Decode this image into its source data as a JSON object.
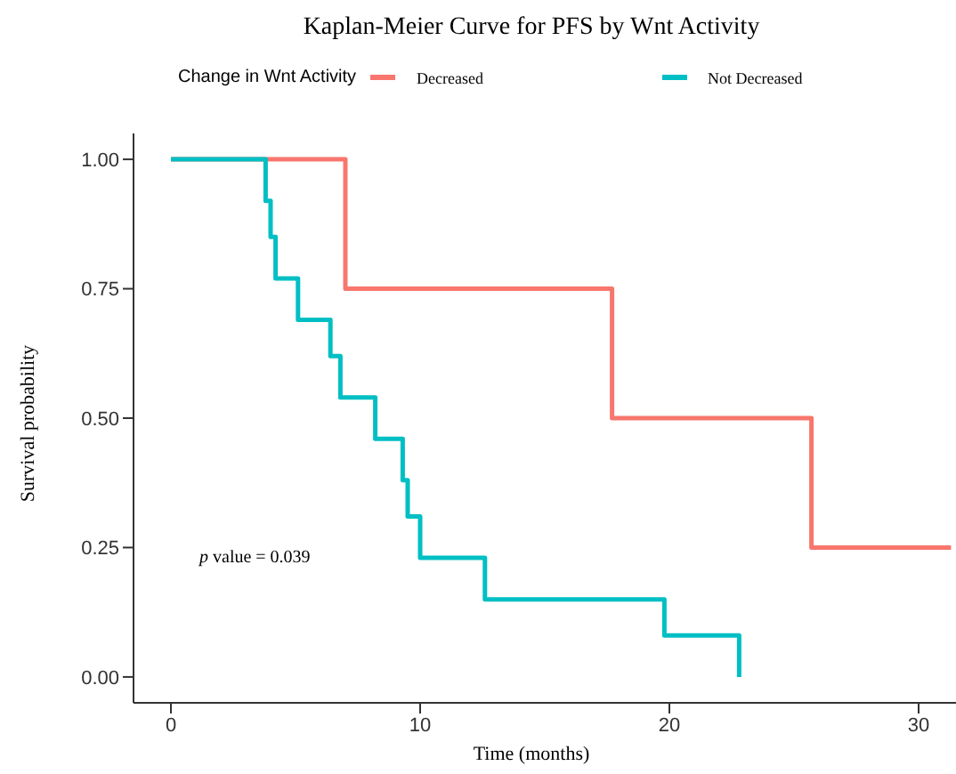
{
  "chart_data": {
    "type": "step",
    "title": "Kaplan-Meier Curve for PFS by Wnt Activity",
    "xlabel": "Time (months)",
    "ylabel": "Survival probability",
    "legend_title": "Change in Wnt Activity",
    "legend": "top",
    "grid": false,
    "marker": "none",
    "line_style": "solid",
    "xlim": [
      -1.5,
      31.5
    ],
    "xticks": [
      0,
      10,
      20,
      30
    ],
    "ylim": [
      -0.05,
      1.05
    ],
    "yticks": [
      {
        "value": 0,
        "label": "0.00"
      },
      {
        "value": 0.25,
        "label": "0.25"
      },
      {
        "value": 0.5,
        "label": "0.50"
      },
      {
        "value": 0.75,
        "label": "0.75"
      },
      {
        "value": 1,
        "label": "1.00"
      }
    ],
    "annotations": [
      "p value = 0.039"
    ],
    "series": [
      {
        "name": "Decreased",
        "color": "#f8766d",
        "x": [
          0,
          7.0,
          17.7,
          25.7,
          31.3
        ],
        "values": [
          1,
          0.75,
          0.5,
          0.25,
          0.25
        ]
      },
      {
        "name": "Not Decreased",
        "color": "#00bfc4",
        "x": [
          0,
          3.8,
          4.0,
          4.2,
          5.1,
          6.4,
          6.8,
          8.2,
          9.3,
          9.5,
          10.0,
          12.6,
          19.8,
          22.8
        ],
        "values": [
          1,
          0.92,
          0.85,
          0.77,
          0.69,
          0.62,
          0.54,
          0.46,
          0.38,
          0.31,
          0.23,
          0.15,
          0.08,
          0
        ]
      }
    ]
  }
}
